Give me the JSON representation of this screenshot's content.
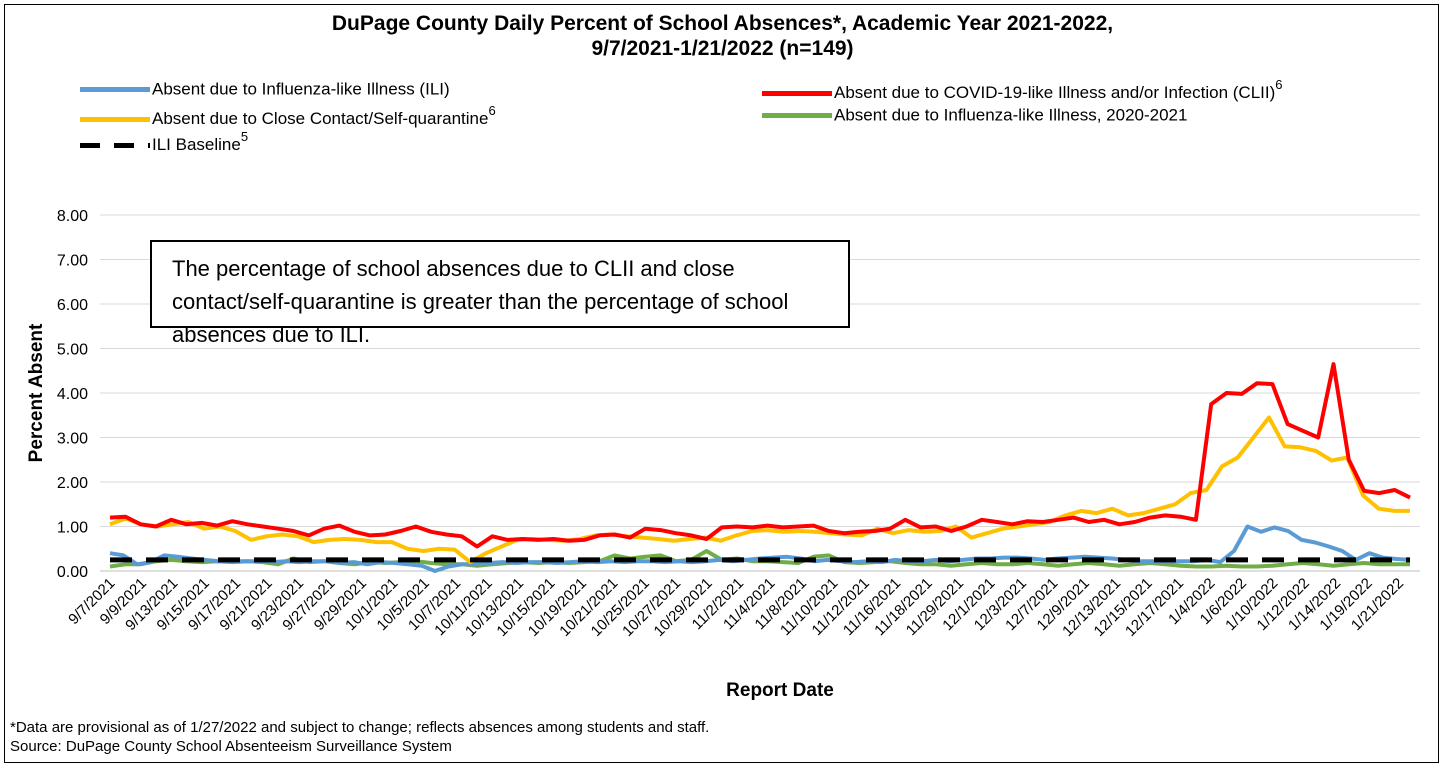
{
  "chart_data": {
    "type": "line",
    "title_line1": "DuPage County Daily Percent of School Absences*, Academic Year 2021-2022,",
    "title_line2": "9/7/2021-1/21/2022 (n=149)",
    "xlabel": "Report Date",
    "ylabel": "Percent Absent",
    "ylim": [
      0,
      8
    ],
    "yticks": [
      "0.00",
      "1.00",
      "2.00",
      "3.00",
      "4.00",
      "5.00",
      "6.00",
      "7.00",
      "8.00"
    ],
    "grid": true,
    "legend_position": "top",
    "x_tick_labels": [
      "9/7/2021",
      "9/9/2021",
      "9/13/2021",
      "9/15/2021",
      "9/17/2021",
      "9/21/2021",
      "9/23/2021",
      "9/27/2021",
      "9/29/2021",
      "10/1/2021",
      "10/5/2021",
      "10/7/2021",
      "10/11/2021",
      "10/13/2021",
      "10/15/2021",
      "10/19/2021",
      "10/21/2021",
      "10/25/2021",
      "10/27/2021",
      "10/29/2021",
      "11/2/2021",
      "11/4/2021",
      "11/8/2021",
      "11/10/2021",
      "11/12/2021",
      "11/16/2021",
      "11/18/2021",
      "11/29/2021",
      "12/1/2021",
      "12/3/2021",
      "12/7/2021",
      "12/9/2021",
      "12/13/2021",
      "12/15/2021",
      "12/17/2021",
      "1/4/2022",
      "1/6/2022",
      "1/10/2022",
      "1/12/2022",
      "1/14/2022",
      "1/19/2022",
      "1/21/2022"
    ],
    "series": [
      {
        "name": "Absent due to Influenza-like Illness (ILI)",
        "color": "#5b9bd5",
        "dash": "solid",
        "values": [
          0.4,
          0.35,
          0.15,
          0.2,
          0.35,
          0.32,
          0.28,
          0.25,
          0.22,
          0.22,
          0.22,
          0.22,
          0.2,
          0.22,
          0.2,
          0.22,
          0.22,
          0.18,
          0.2,
          0.15,
          0.2,
          0.18,
          0.15,
          0.12,
          0.0,
          0.1,
          0.15,
          0.15,
          0.18,
          0.2,
          0.18,
          0.2,
          0.2,
          0.18,
          0.2,
          0.22,
          0.2,
          0.22,
          0.2,
          0.22,
          0.22,
          0.2,
          0.22,
          0.2,
          0.22,
          0.25,
          0.22,
          0.25,
          0.28,
          0.3,
          0.32,
          0.28,
          0.22,
          0.25,
          0.22,
          0.2,
          0.22,
          0.2,
          0.25,
          0.22,
          0.22,
          0.25,
          0.22,
          0.25,
          0.28,
          0.28,
          0.3,
          0.3,
          0.28,
          0.25,
          0.28,
          0.3,
          0.32,
          0.3,
          0.28,
          0.25,
          0.22,
          0.22,
          0.22,
          0.22,
          0.22,
          0.25,
          0.2,
          0.45,
          1.0,
          0.88,
          0.98,
          0.9,
          0.7,
          0.64,
          0.55,
          0.45,
          0.25,
          0.4,
          0.3,
          0.27,
          0.25
        ]
      },
      {
        "name": "Absent due to COVID-19-like Illness and/or Infection (CLII)",
        "color": "#ff0000",
        "dash": "solid",
        "sup": "6",
        "values": [
          1.2,
          1.22,
          1.05,
          1.0,
          1.15,
          1.05,
          1.08,
          1.02,
          1.12,
          1.05,
          1.0,
          0.95,
          0.9,
          0.8,
          0.95,
          1.02,
          0.88,
          0.8,
          0.82,
          0.9,
          1.0,
          0.88,
          0.82,
          0.78,
          0.55,
          0.78,
          0.7,
          0.72,
          0.7,
          0.72,
          0.68,
          0.7,
          0.8,
          0.82,
          0.75,
          0.95,
          0.92,
          0.85,
          0.8,
          0.72,
          0.98,
          1.0,
          0.98,
          1.02,
          0.98,
          1.0,
          1.02,
          0.9,
          0.85,
          0.88,
          0.9,
          0.95,
          1.15,
          0.98,
          1.0,
          0.9,
          1.0,
          1.15,
          1.1,
          1.05,
          1.12,
          1.1,
          1.15,
          1.2,
          1.1,
          1.15,
          1.05,
          1.1,
          1.2,
          1.25,
          1.22,
          1.15,
          3.75,
          4.0,
          3.98,
          4.22,
          4.2,
          3.3,
          3.15,
          3.0,
          4.65,
          2.5,
          1.8,
          1.75,
          1.82,
          1.65
        ]
      },
      {
        "name": "Absent due to Close Contact/Self-quarantine",
        "color": "#ffc000",
        "dash": "solid",
        "sup": "6",
        "values": [
          1.05,
          1.18,
          1.05,
          1.0,
          1.05,
          1.1,
          0.95,
          1.0,
          0.9,
          0.7,
          0.78,
          0.82,
          0.78,
          0.65,
          0.7,
          0.72,
          0.7,
          0.65,
          0.65,
          0.5,
          0.45,
          0.5,
          0.48,
          0.2,
          0.4,
          0.55,
          0.7,
          0.72,
          0.7,
          0.68,
          0.72,
          0.8,
          0.82,
          0.78,
          0.75,
          0.72,
          0.68,
          0.72,
          0.75,
          0.68,
          0.8,
          0.9,
          0.92,
          0.88,
          0.9,
          0.88,
          0.85,
          0.82,
          0.8,
          0.95,
          0.85,
          0.92,
          0.88,
          0.9,
          1.0,
          0.75,
          0.85,
          0.95,
          1.0,
          1.05,
          1.1,
          1.25,
          1.35,
          1.3,
          1.4,
          1.25,
          1.3,
          1.4,
          1.5,
          1.75,
          1.82,
          2.35,
          2.55,
          3.0,
          3.45,
          2.8,
          2.78,
          2.7,
          2.48,
          2.55,
          1.7,
          1.4,
          1.35,
          1.35
        ]
      },
      {
        "name": "Absent due to Influenza-like Illness, 2020-2021",
        "color": "#70ad47",
        "dash": "solid",
        "values": [
          0.1,
          0.15,
          0.15,
          0.22,
          0.25,
          0.22,
          0.2,
          0.22,
          0.2,
          0.22,
          0.2,
          0.15,
          0.28,
          0.2,
          0.22,
          0.18,
          0.15,
          0.2,
          0.18,
          0.2,
          0.22,
          0.18,
          0.15,
          0.15,
          0.12,
          0.15,
          0.18,
          0.2,
          0.18,
          0.2,
          0.18,
          0.2,
          0.22,
          0.35,
          0.28,
          0.32,
          0.35,
          0.22,
          0.25,
          0.45,
          0.25,
          0.28,
          0.22,
          0.22,
          0.2,
          0.18,
          0.32,
          0.35,
          0.2,
          0.18,
          0.2,
          0.22,
          0.18,
          0.15,
          0.15,
          0.12,
          0.15,
          0.18,
          0.15,
          0.15,
          0.18,
          0.15,
          0.12,
          0.15,
          0.18,
          0.15,
          0.12,
          0.15,
          0.18,
          0.15,
          0.12,
          0.1,
          0.1,
          0.12,
          0.1,
          0.1,
          0.12,
          0.15,
          0.18,
          0.15,
          0.12,
          0.15,
          0.18,
          0.15,
          0.15,
          0.15
        ]
      },
      {
        "name": "ILI Baseline",
        "color": "#000000",
        "dash": "dashed",
        "sup": "5",
        "values": [
          0.25,
          0.25
        ]
      }
    ],
    "annotation": "The percentage of school absences due to CLII and close contact/self-quarantine is greater than the percentage of school absences due to ILI."
  },
  "footnotes": {
    "note": "*Data are provisional as of 1/27/2022 and subject to change; reflects absences among students and staff.",
    "source": "Source: DuPage County School Absenteeism Surveillance System"
  }
}
